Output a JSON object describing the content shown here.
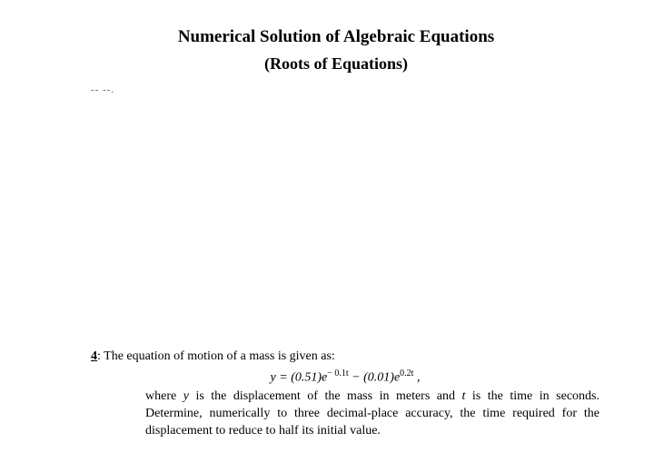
{
  "title": {
    "main": "Numerical Solution of Algebraic Equations",
    "sub": "(Roots of Equations)",
    "main_fontsize": 19,
    "sub_fontsize": 18,
    "color": "#000000"
  },
  "dots": "-- --.",
  "problem": {
    "number": "4",
    "intro_text": ": The equation of motion of a mass is given as:",
    "equation": {
      "lhs_var": "y",
      "eq_sign": " = ",
      "coef1": "(0.51)",
      "e1": "e",
      "exp1": "− 0.1t",
      "minus": " − ",
      "coef2": "(0.01)",
      "e2": "e",
      "exp2": "0.2t",
      "tail": " ,"
    },
    "body_text_1": "where ",
    "var_y": "y",
    "body_text_2": " is the displacement of the mass in meters and ",
    "var_t": "t",
    "body_text_3": " is the time in seconds. Determine, numerically to three decimal-place accuracy, the time required for the displacement to reduce to half its initial value."
  },
  "style": {
    "background_color": "#ffffff",
    "text_color": "#000000",
    "font_family": "Times New Roman",
    "body_fontsize": 14
  }
}
